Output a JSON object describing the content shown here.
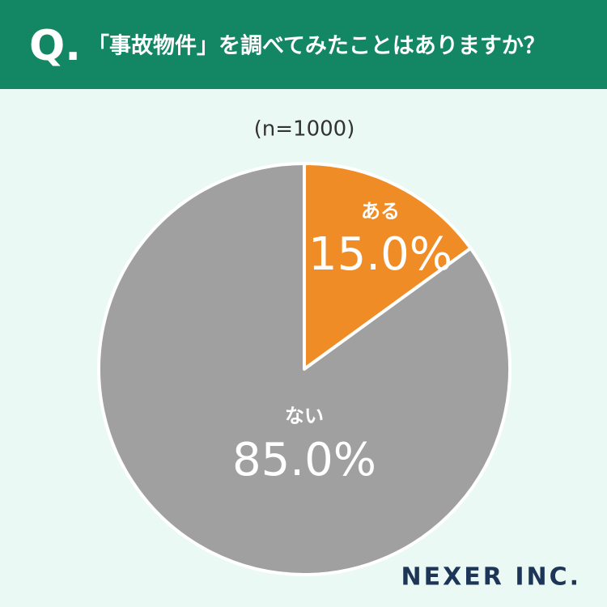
{
  "chart_data": {
    "type": "pie",
    "q_label": "Q.",
    "title": "「事故物件」を調べてみたことはありますか？",
    "subtitle": "(n=1000)",
    "categories": [
      "ある",
      "ない"
    ],
    "values": [
      15.0,
      85.0
    ],
    "value_labels": [
      "15.0%",
      "85.0%"
    ],
    "colors": [
      "#f08c25",
      "#a0a0a0"
    ],
    "brand": "NEXER INC."
  }
}
